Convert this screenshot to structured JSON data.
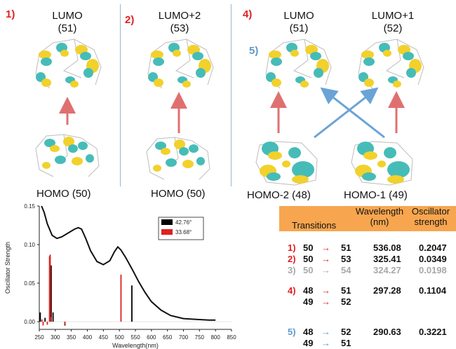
{
  "colors": {
    "red": "#e02020",
    "blue": "#5d99cc",
    "grey": "#a8a8a8",
    "orange": "#f7a64f",
    "lobe_yellow": "#f2d12c",
    "lobe_cyan": "#46bcb8"
  },
  "panels": [
    {
      "num": "1)",
      "top_label": "LUMO",
      "top_num": "(51)",
      "bottom_label": "HOMO (50)"
    },
    {
      "num": "2)",
      "top_label": "LUMO+2",
      "top_num": "(53)",
      "bottom_label": "HOMO (50)"
    },
    {
      "num": "4)",
      "num2": "5)",
      "top_label": "LUMO",
      "top_num": "(51)",
      "top2_label": "LUMO+1",
      "top2_num": "(52)",
      "bottom_label": "HOMO-2 (48)",
      "bottom2_label": "HOMO-1 (49)"
    }
  ],
  "table": {
    "headers": {
      "transitions": "Transitions",
      "wavelength": "Wavelength",
      "wavelength_unit": "(nm)",
      "oscillator": "Oscillator",
      "strength": "strength"
    },
    "arrow": "→",
    "groups": [
      {
        "rows": [
          {
            "label": "1)",
            "from": "50",
            "to": "51",
            "wavelength": "536.08",
            "strength": "0.2047",
            "style": "red"
          },
          {
            "label": "2)",
            "from": "50",
            "to": "53",
            "wavelength": "325.41",
            "strength": "0.0349",
            "style": "red"
          },
          {
            "label": "3)",
            "from": "50",
            "to": "54",
            "wavelength": "324.27",
            "strength": "0.0198",
            "style": "grey"
          }
        ]
      },
      {
        "rows": [
          {
            "label": "4)",
            "from": "48",
            "to": "51",
            "wavelength": "297.28",
            "strength": "0.1104",
            "style": "red"
          },
          {
            "label": "",
            "from": "49",
            "to": "52",
            "wavelength": "",
            "strength": "",
            "style": "red"
          }
        ]
      },
      {
        "rows": [
          {
            "label": "5)",
            "from": "48",
            "to": "52",
            "wavelength": "290.63",
            "strength": "0.3221",
            "style": "blue"
          },
          {
            "label": "",
            "from": "49",
            "to": "51",
            "wavelength": "",
            "strength": "",
            "style": "blue"
          }
        ]
      }
    ]
  },
  "chart_data": {
    "type": "line",
    "title": "",
    "xlabel": "Wavelength(nm)",
    "ylabel": "Oscillator Strength",
    "xlim": [
      250,
      850
    ],
    "ylim": [
      -0.01,
      0.15
    ],
    "xticks": [
      250,
      300,
      350,
      400,
      450,
      500,
      550,
      600,
      650,
      700,
      750,
      800,
      850
    ],
    "yticks": [
      0.0,
      0.05,
      0.1,
      0.15
    ],
    "ytick_labels": [
      "0.00",
      "0.05",
      "0.10",
      "0.15"
    ],
    "legend": {
      "placement": "top-right",
      "entries": [
        {
          "label": "42.76°",
          "color": "#000000"
        },
        {
          "label": "33.68°",
          "color": "#e02020"
        }
      ]
    },
    "spectrum": {
      "x": [
        257,
        265,
        275,
        290,
        305,
        320,
        340,
        360,
        372,
        382,
        395,
        410,
        430,
        450,
        470,
        485,
        495,
        505,
        520,
        540,
        560,
        580,
        600,
        630,
        660,
        700,
        740,
        780,
        800
      ],
      "y": [
        0.15,
        0.142,
        0.127,
        0.112,
        0.108,
        0.11,
        0.115,
        0.12,
        0.122,
        0.12,
        0.108,
        0.092,
        0.078,
        0.074,
        0.079,
        0.091,
        0.097,
        0.093,
        0.083,
        0.068,
        0.052,
        0.038,
        0.026,
        0.015,
        0.008,
        0.004,
        0.003,
        0.002,
        0.002
      ]
    },
    "sticks": [
      {
        "name": "42.76°",
        "color": "#000000",
        "x": [
          253,
          268,
          285,
          287,
          293,
          330,
          539
        ],
        "y": [
          0.012,
          0.005,
          0.07,
          0.073,
          0.012,
          -0.005,
          0.047
        ]
      },
      {
        "name": "33.68°",
        "color": "#e02020",
        "x": [
          258,
          262,
          275,
          282,
          284,
          286,
          330,
          505
        ],
        "y": [
          0.003,
          -0.005,
          -0.004,
          0.085,
          0.087,
          0.006,
          -0.004,
          0.061
        ]
      }
    ]
  }
}
